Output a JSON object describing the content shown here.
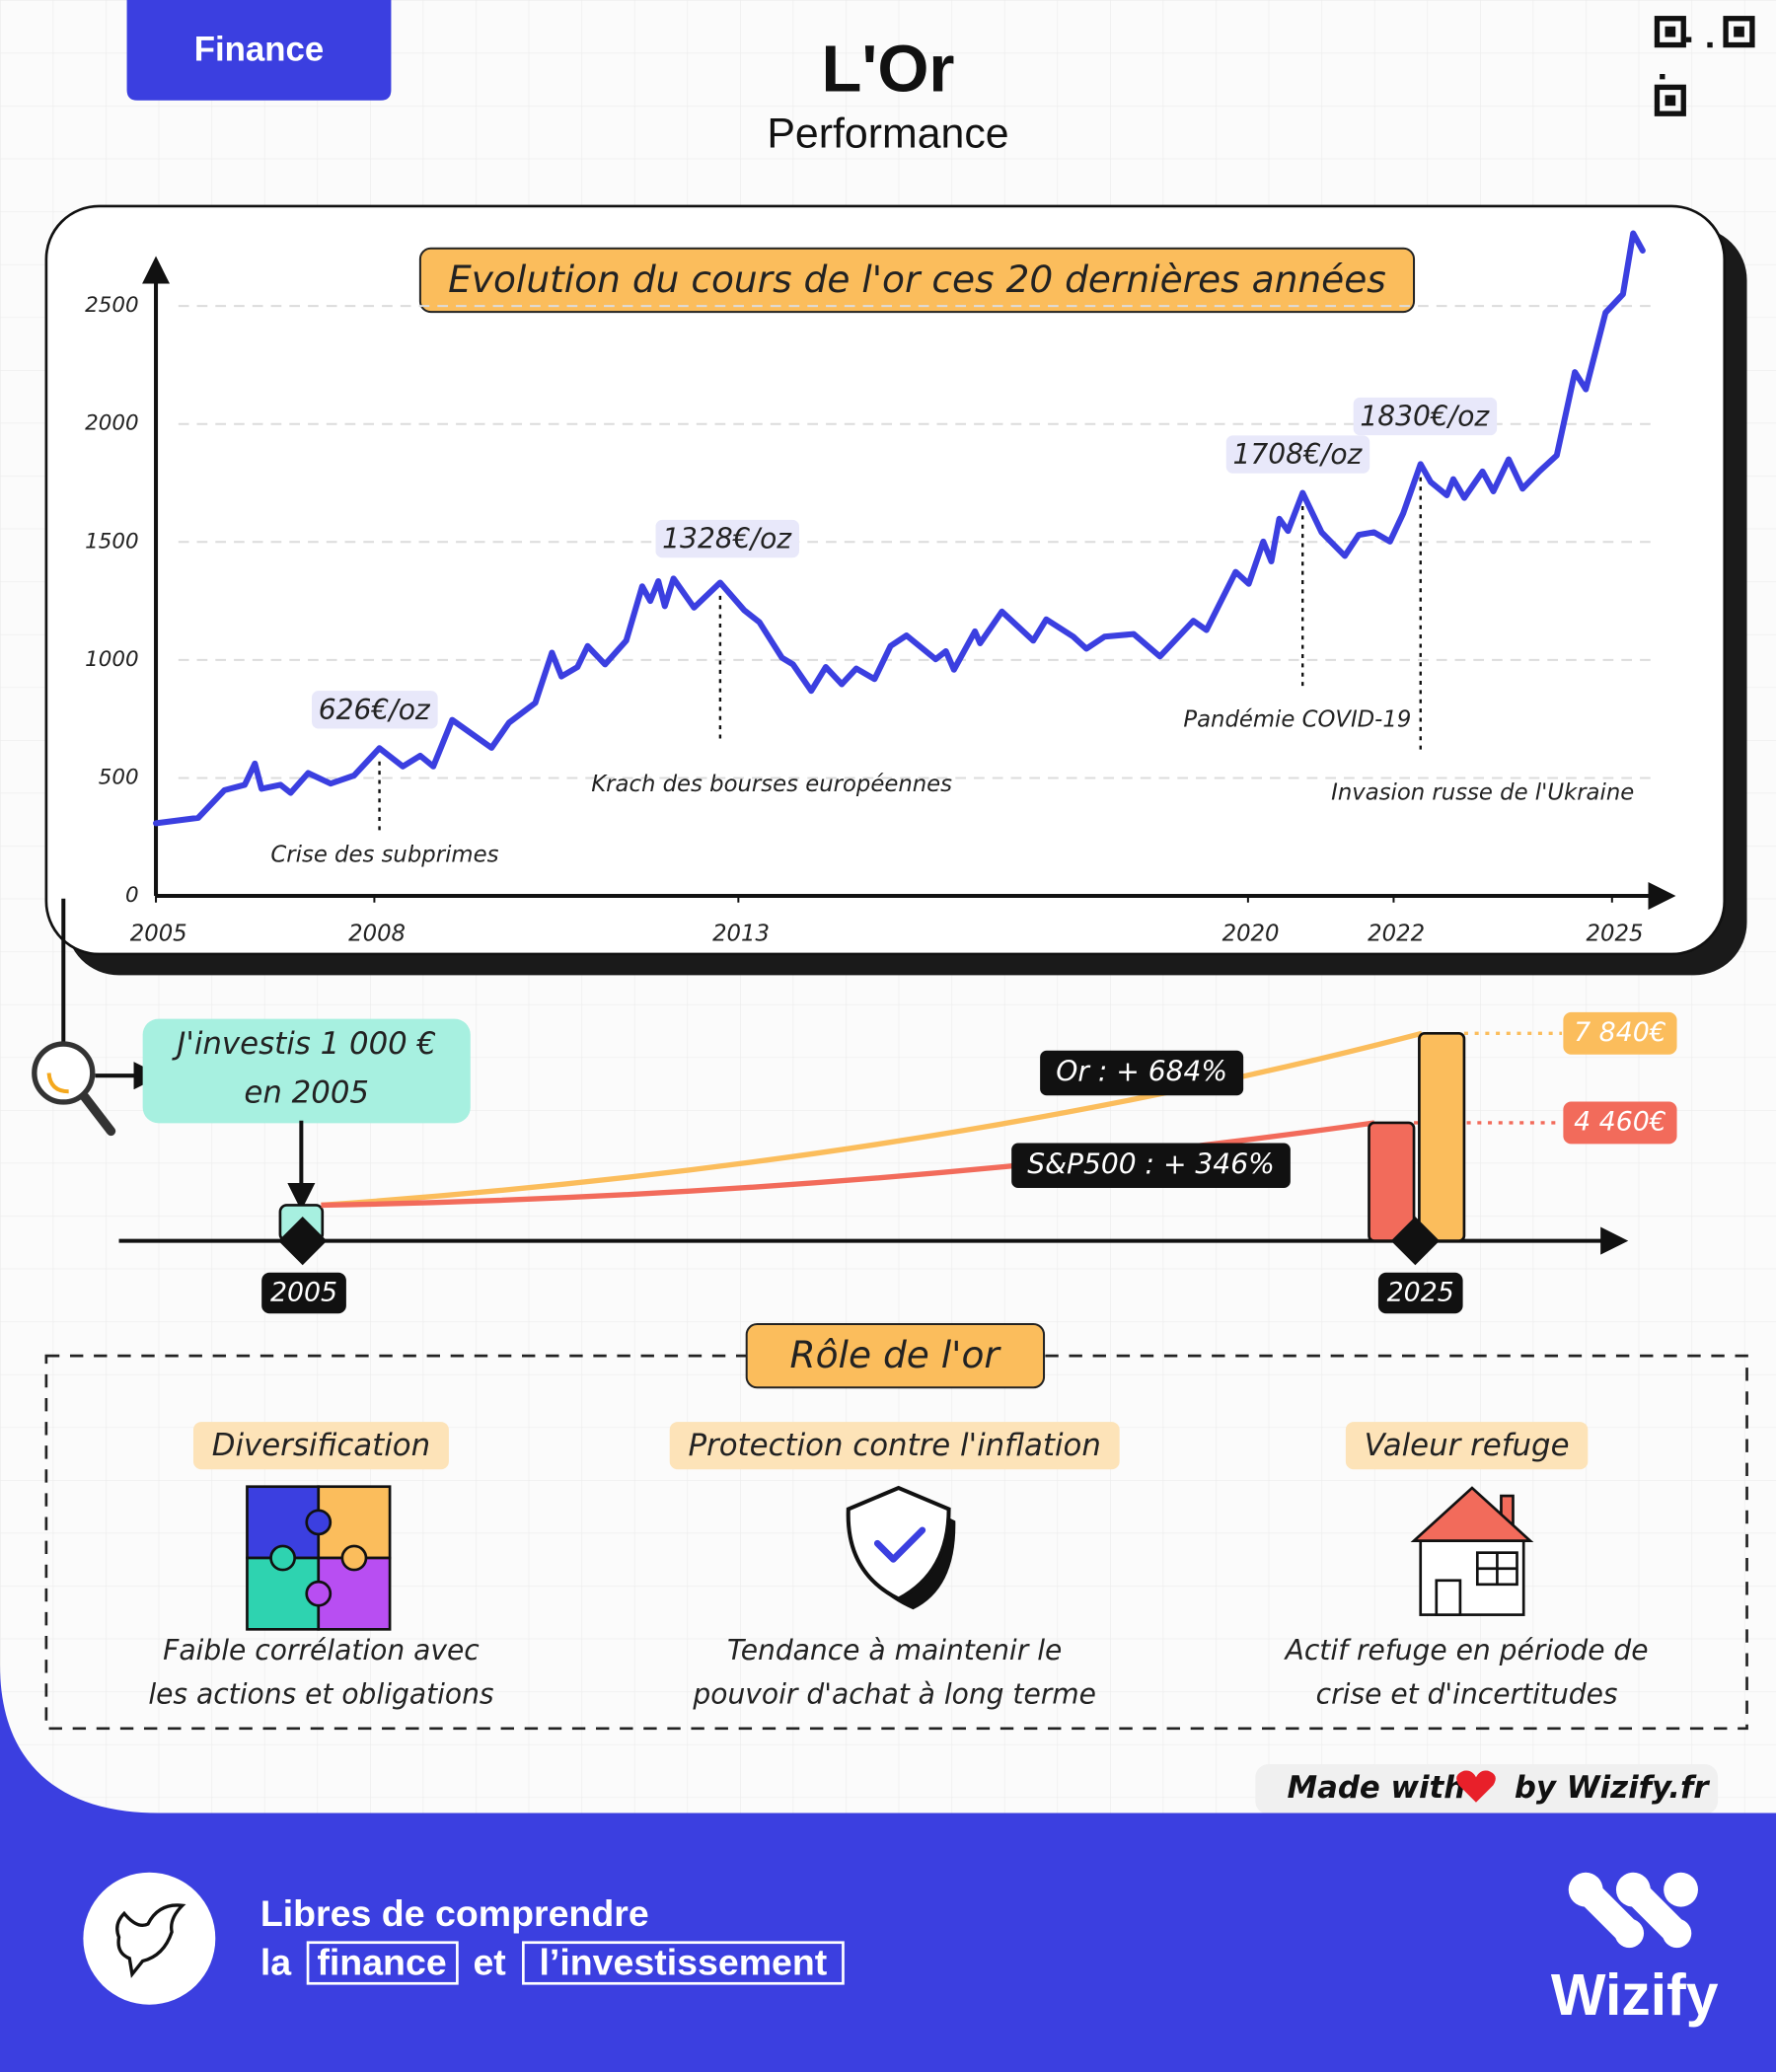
{
  "header": {
    "tag": "Finance",
    "title": "L'Or",
    "subtitle": "Performance"
  },
  "chart_data": {
    "type": "line",
    "title": "Evolution du cours de l'or ces 20 dernières années",
    "color": "#3b3fe0",
    "x": [
      2005.0,
      2005.58,
      2005.94,
      2006.22,
      2006.36,
      2006.45,
      2006.71,
      2006.85,
      2007.09,
      2007.4,
      2007.72,
      2008.07,
      2008.39,
      2008.63,
      2008.81,
      2009.07,
      2009.61,
      2009.85,
      2010.21,
      2010.44,
      2010.57,
      2010.79,
      2010.93,
      2011.17,
      2011.46,
      2011.68,
      2011.79,
      2011.9,
      2011.99,
      2012.11,
      2012.39,
      2012.75,
      2013.08,
      2013.29,
      2013.6,
      2013.75,
      2014.0,
      2014.2,
      2014.42,
      2014.62,
      2014.87,
      2015.09,
      2015.31,
      2015.71,
      2015.85,
      2015.96,
      2016.25,
      2016.32,
      2016.62,
      2017.05,
      2017.23,
      2017.6,
      2017.78,
      2018.03,
      2018.43,
      2018.79,
      2019.25,
      2019.43,
      2019.83,
      2020.01,
      2020.21,
      2020.32,
      2020.43,
      2020.55,
      2020.75,
      2021.01,
      2021.33,
      2021.52,
      2021.73,
      2021.95,
      2022.13,
      2022.37,
      2022.51,
      2022.73,
      2022.82,
      2022.97,
      2023.22,
      2023.37,
      2023.58,
      2023.77,
      2024.0,
      2024.24,
      2024.49,
      2024.64,
      2024.91,
      2025.15,
      2025.29,
      2025.42
    ],
    "values": [
      308,
      331,
      448,
      471,
      561,
      454,
      471,
      437,
      521,
      476,
      510,
      626,
      549,
      594,
      549,
      746,
      628,
      734,
      818,
      1031,
      930,
      970,
      1059,
      981,
      1082,
      1312,
      1250,
      1334,
      1228,
      1345,
      1222,
      1328,
      1211,
      1160,
      1009,
      981,
      869,
      970,
      897,
      964,
      919,
      1059,
      1104,
      1003,
      1037,
      959,
      1121,
      1071,
      1205,
      1082,
      1172,
      1099,
      1048,
      1099,
      1110,
      1015,
      1166,
      1127,
      1373,
      1323,
      1502,
      1418,
      1598,
      1547,
      1708,
      1541,
      1441,
      1530,
      1541,
      1502,
      1620,
      1830,
      1754,
      1698,
      1766,
      1687,
      1799,
      1715,
      1850,
      1726,
      1799,
      1867,
      2220,
      2147,
      2472,
      2550,
      2808,
      2735
    ],
    "xlim": [
      2005,
      2025.8
    ],
    "ylim": [
      0,
      2800
    ],
    "xticks": [
      2005,
      2008,
      2013,
      2020,
      2022,
      2025
    ],
    "yticks": [
      0,
      500,
      1000,
      1500,
      2000,
      2500
    ],
    "grid": true,
    "annotations": [
      {
        "x": 2008.07,
        "y": 626,
        "label": "626€/oz",
        "event": "Crise des subprimes"
      },
      {
        "x": 2012.75,
        "y": 1328,
        "label": "1328€/oz",
        "event": "Krach des bourses européennes"
      },
      {
        "x": 2020.75,
        "y": 1708,
        "label": "1708€/oz",
        "event": "Pandémie COVID-19"
      },
      {
        "x": 2022.37,
        "y": 1830,
        "label": "1830€/oz",
        "event": "Invasion russe de l'Ukraine"
      }
    ]
  },
  "investment": {
    "intro": [
      "J'investis 1 000 €",
      "en 2005"
    ],
    "start": "2005",
    "end": "2025",
    "assets": [
      {
        "name": "Or : + 684%",
        "value": 7840,
        "value_label": "7 840€",
        "color": "#fbbd5c"
      },
      {
        "name": "S&P500 : + 346%",
        "value": 4460,
        "value_label": "4 460€",
        "color": "#f26b5b"
      }
    ]
  },
  "role": {
    "title": "Rôle de l'or",
    "cards": [
      {
        "title": "Diversification",
        "text": [
          "Faible corrélation avec",
          "les actions et obligations"
        ]
      },
      {
        "title": "Protection contre l'inflation",
        "text": [
          "Tendance à maintenir le",
          "pouvoir d'achat à long terme"
        ]
      },
      {
        "title": "Valeur refuge",
        "text": [
          "Actif refuge en période de",
          "crise et d'incertitudes"
        ]
      }
    ]
  },
  "credit": {
    "made": "Made with",
    "by": "by Wizify.fr"
  },
  "footer": {
    "line1": "Libres de comprendre",
    "la": "la",
    "finance": "finance",
    "et": "et",
    "invest": "l’investissement",
    "brand": "Wizify"
  }
}
